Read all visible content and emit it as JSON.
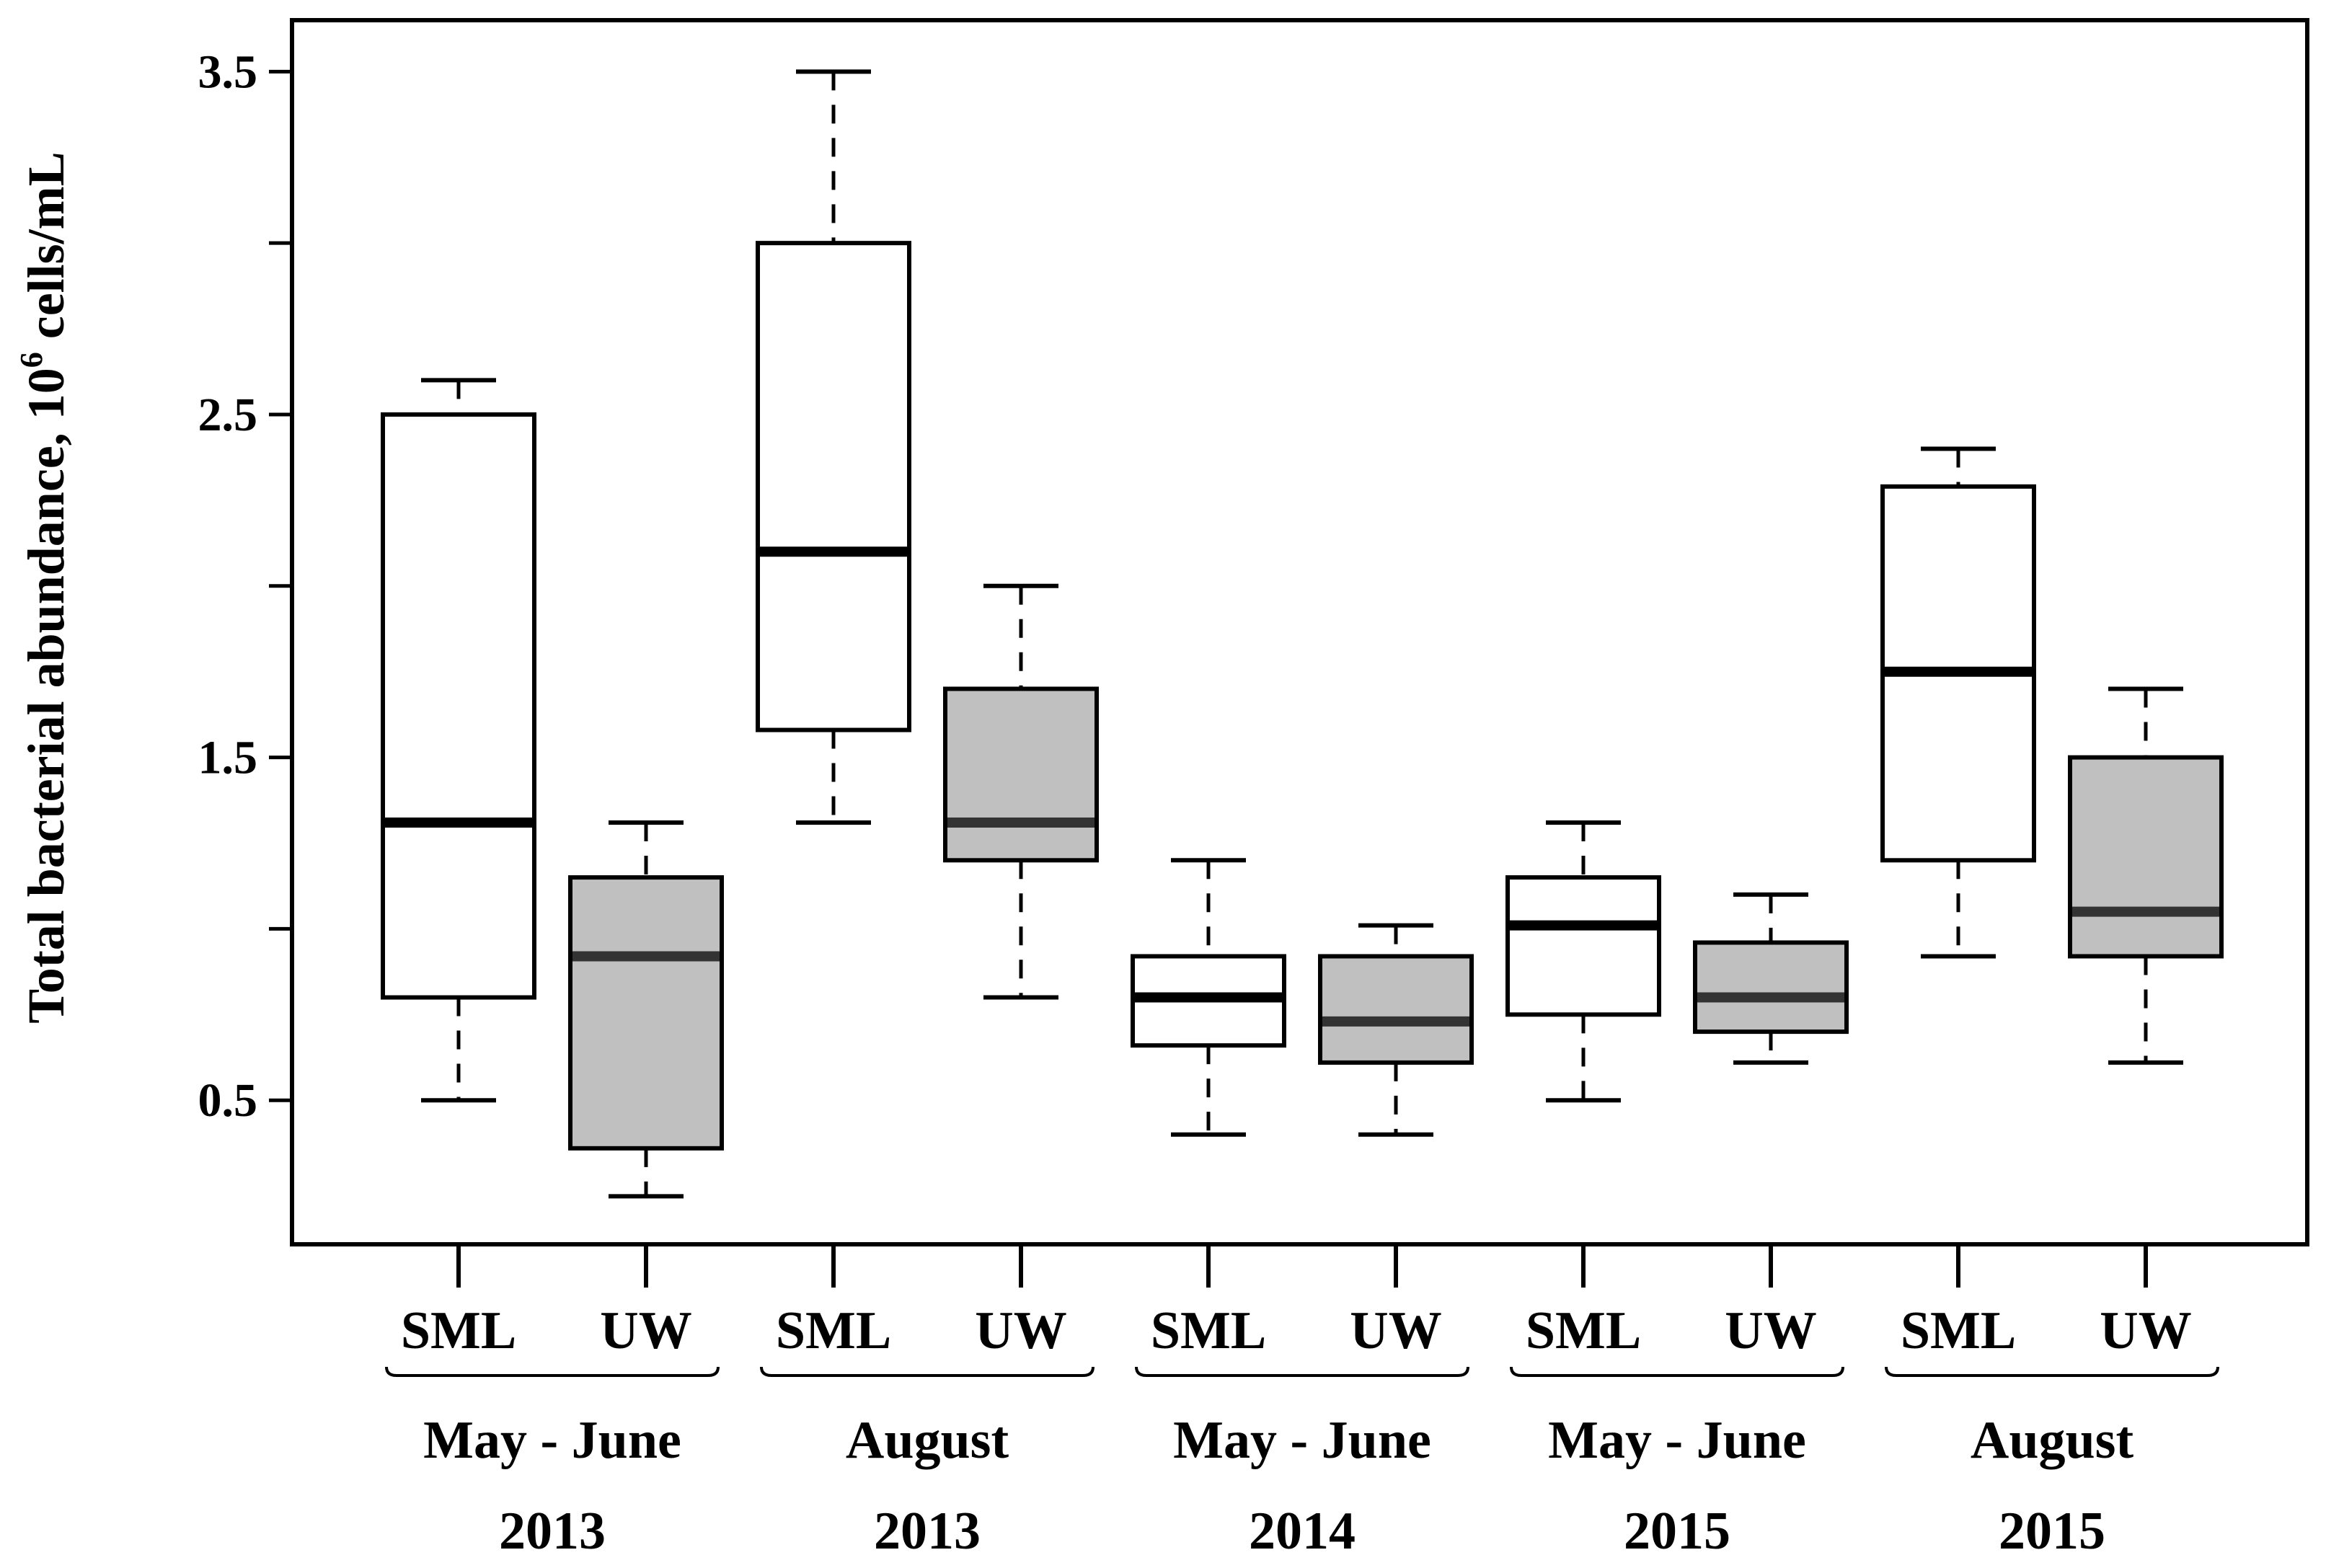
{
  "chart_data": {
    "type": "box",
    "title": "",
    "xlabel": "",
    "ylabel": "Total bacterial abundance, 10",
    "ylabel_superscript": "6",
    "ylabel_suffix": " cells/mL",
    "ylim": [
      0.08,
      3.65
    ],
    "yticks": [
      0.5,
      1.5,
      2.5,
      3.5
    ],
    "ytick_labels": [
      "0.5",
      "1.5",
      "2.5",
      "3.5"
    ],
    "minor_yticks": [
      1.0,
      2.0,
      3.0
    ],
    "groups": [
      {
        "period": "May - June",
        "year": "2013"
      },
      {
        "period": "August",
        "year": "2013"
      },
      {
        "period": "May - June",
        "year": "2014"
      },
      {
        "period": "May - June",
        "year": "2015"
      },
      {
        "period": "August",
        "year": "2015"
      }
    ],
    "boxes": [
      {
        "label": "SML",
        "group": 0,
        "fill": "#ffffff",
        "min": 0.5,
        "q1": 0.8,
        "median": 1.31,
        "q3": 2.5,
        "max": 2.6
      },
      {
        "label": "UW",
        "group": 0,
        "fill": "#c0c0c0",
        "min": 0.22,
        "q1": 0.36,
        "median": 0.92,
        "q3": 1.15,
        "max": 1.31
      },
      {
        "label": "SML",
        "group": 1,
        "fill": "#ffffff",
        "min": 1.31,
        "q1": 1.58,
        "median": 2.1,
        "q3": 3.0,
        "max": 3.5
      },
      {
        "label": "UW",
        "group": 1,
        "fill": "#c0c0c0",
        "min": 0.8,
        "q1": 1.2,
        "median": 1.31,
        "q3": 1.7,
        "max": 2.0
      },
      {
        "label": "SML",
        "group": 2,
        "fill": "#ffffff",
        "min": 0.4,
        "q1": 0.66,
        "median": 0.8,
        "q3": 0.92,
        "max": 1.2
      },
      {
        "label": "UW",
        "group": 2,
        "fill": "#c0c0c0",
        "min": 0.4,
        "q1": 0.61,
        "median": 0.73,
        "q3": 0.92,
        "max": 1.01
      },
      {
        "label": "SML",
        "group": 3,
        "fill": "#ffffff",
        "min": 0.5,
        "q1": 0.75,
        "median": 1.01,
        "q3": 1.15,
        "max": 1.31
      },
      {
        "label": "UW",
        "group": 3,
        "fill": "#c0c0c0",
        "min": 0.61,
        "q1": 0.7,
        "median": 0.8,
        "q3": 0.96,
        "max": 1.1
      },
      {
        "label": "SML",
        "group": 4,
        "fill": "#ffffff",
        "min": 0.92,
        "q1": 1.2,
        "median": 1.75,
        "q3": 2.29,
        "max": 2.4
      },
      {
        "label": "UW",
        "group": 4,
        "fill": "#c0c0c0",
        "min": 0.61,
        "q1": 0.92,
        "median": 1.05,
        "q3": 1.5,
        "max": 1.7
      }
    ],
    "colors": {
      "sml_fill": "#ffffff",
      "uw_fill": "#c0c0c0",
      "sml_median": "#000000",
      "uw_median": "#333333",
      "stroke": "#000000"
    }
  }
}
